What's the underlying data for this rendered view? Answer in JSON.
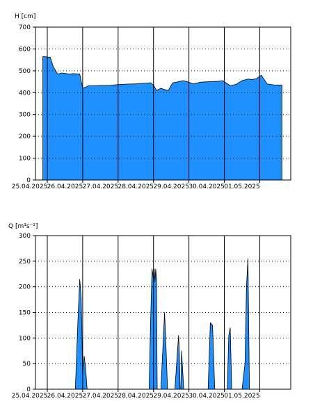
{
  "chart_data": [
    {
      "type": "area",
      "ylabel": "H [cm]",
      "ylim": [
        0,
        700
      ],
      "yticks": [
        0,
        100,
        200,
        300,
        400,
        500,
        600,
        700
      ],
      "xlim": [
        "2025-04-24T16:00",
        "2025-05-01T21:00"
      ],
      "xtick_labels": [
        "25.04.2025",
        "26.04.2025",
        "27.04.2025",
        "28.04.2025",
        "29.04.2025",
        "30.04.2025",
        "01.05.2025"
      ],
      "grid": true,
      "fill_color": "#1e90ff",
      "series": [
        {
          "x": [
            "2025-04-24T21:00",
            "2025-04-25T02:00",
            "2025-04-25T04:00",
            "2025-04-25T07:00",
            "2025-04-25T10:00",
            "2025-04-25T15:00",
            "2025-04-25T18:00",
            "2025-04-25T22:00",
            "2025-04-26T00:00",
            "2025-04-26T02:00",
            "2025-04-26T04:00",
            "2025-04-26T08:00",
            "2025-04-26T12:00",
            "2025-04-26T18:00",
            "2025-04-27T00:00",
            "2025-04-27T06:00",
            "2025-04-27T12:00",
            "2025-04-27T18:00",
            "2025-04-27T22:00",
            "2025-04-28T00:00",
            "2025-04-28T02:00",
            "2025-04-28T05:00",
            "2025-04-28T07:00",
            "2025-04-28T10:00",
            "2025-04-28T13:00",
            "2025-04-28T17:00",
            "2025-04-28T20:00",
            "2025-04-28T23:00",
            "2025-04-29T03:00",
            "2025-04-29T08:00",
            "2025-04-29T14:00",
            "2025-04-29T20:00",
            "2025-04-29T23:00",
            "2025-04-30T01:00",
            "2025-04-30T04:00",
            "2025-04-30T08:00",
            "2025-04-30T12:00",
            "2025-04-30T16:00",
            "2025-04-30T19:00",
            "2025-04-30T22:00",
            "2025-05-01T01:00",
            "2025-05-01T05:00",
            "2025-05-01T10:00",
            "2025-05-01T15:00"
          ],
          "y": [
            565,
            562,
            520,
            485,
            490,
            485,
            487,
            485,
            420,
            425,
            432,
            432,
            433,
            433,
            437,
            439,
            440,
            443,
            445,
            435,
            410,
            420,
            415,
            410,
            445,
            450,
            455,
            450,
            440,
            448,
            450,
            452,
            455,
            445,
            432,
            438,
            455,
            462,
            460,
            465,
            480,
            440,
            435,
            435
          ]
        }
      ]
    },
    {
      "type": "area",
      "ylabel": "Q [m³s⁻¹]",
      "ylim": [
        0,
        300
      ],
      "yticks": [
        0,
        50,
        100,
        150,
        200,
        250,
        300
      ],
      "xlim": [
        "2025-04-24T16:00",
        "2025-05-01T21:00"
      ],
      "xtick_labels": [
        "25.04.2025",
        "26.04.2025",
        "27.04.2025",
        "28.04.2025",
        "29.04.2025",
        "30.04.2025",
        "01.05.2025"
      ],
      "grid": true,
      "fill_color": "#1e90ff",
      "series": [
        {
          "x": [
            "2025-04-24T21:00",
            "2025-04-25T19:00",
            "2025-04-25T21:00",
            "2025-04-25T22:00",
            "2025-04-25T23:00",
            "2025-04-26T00:00",
            "2025-04-26T01:00",
            "2025-04-26T02:00",
            "2025-04-26T03:00",
            "2025-04-26T04:00",
            "2025-04-27T21:00",
            "2025-04-27T22:00",
            "2025-04-27T23:00",
            "2025-04-28T00:00",
            "2025-04-28T00:30",
            "2025-04-28T01:00",
            "2025-04-28T01:30",
            "2025-04-28T02:00",
            "2025-04-28T02:30",
            "2025-04-28T05:00",
            "2025-04-28T06:30",
            "2025-04-28T07:30",
            "2025-04-28T08:30",
            "2025-04-28T09:30",
            "2025-04-28T14:30",
            "2025-04-28T16:00",
            "2025-04-28T17:00",
            "2025-04-28T17:30",
            "2025-04-28T18:00",
            "2025-04-28T18:30",
            "2025-04-28T19:00",
            "2025-04-28T19:30",
            "2025-04-28T20:30",
            "2025-04-29T13:00",
            "2025-04-29T14:30",
            "2025-04-29T16:00",
            "2025-04-29T17:30",
            "2025-04-29T19:00",
            "2025-04-30T02:00",
            "2025-04-30T03:00",
            "2025-04-30T04:00",
            "2025-04-30T05:00",
            "2025-04-30T12:00",
            "2025-04-30T14:00",
            "2025-04-30T15:00",
            "2025-04-30T16:00",
            "2025-04-30T17:00",
            "2025-05-01T21:00"
          ],
          "y": [
            0,
            0,
            150,
            215,
            180,
            30,
            65,
            40,
            0,
            0,
            0,
            130,
            235,
            215,
            235,
            210,
            235,
            215,
            0,
            0,
            90,
            150,
            80,
            0,
            0,
            65,
            105,
            70,
            0,
            0,
            75,
            50,
            0,
            0,
            130,
            125,
            0,
            0,
            0,
            105,
            120,
            0,
            0,
            50,
            200,
            255,
            0,
            0
          ]
        }
      ]
    }
  ]
}
